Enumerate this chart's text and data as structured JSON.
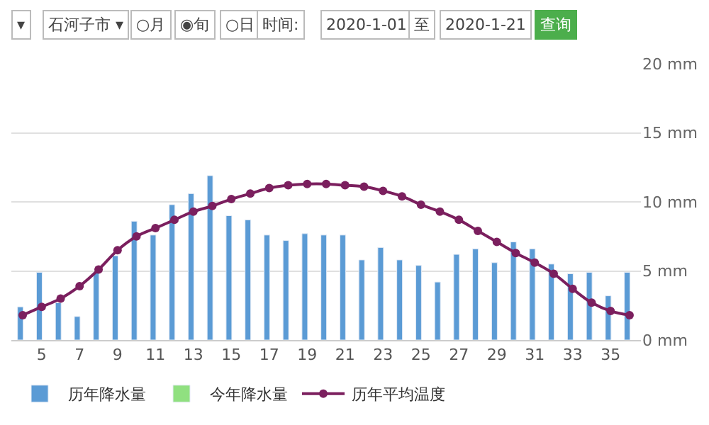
{
  "chart_data": {
    "type": "bar",
    "annotations": [
      "▾",
      "石河子市 ▾",
      "○月",
      "◉旬",
      "○日",
      "时间:",
      "2020-1-01",
      "至",
      "2020-1-21",
      "查询"
    ],
    "categories": [
      null,
      "5",
      null,
      "7",
      null,
      "9",
      null,
      "11",
      null,
      "13",
      null,
      "15",
      null,
      "17",
      null,
      "19",
      null,
      "21",
      null,
      "23",
      null,
      "25",
      null,
      "27",
      null,
      "29",
      null,
      "31",
      null,
      "33",
      null,
      "35",
      null
    ],
    "series": [
      {
        "name": "历年降水量",
        "color": "#5b9bd5",
        "values": [
          2.4,
          4.9,
          2.7,
          1.7,
          4.9,
          6.1,
          8.6,
          7.6,
          9.8,
          10.6,
          11.9,
          9.0,
          8.7,
          7.6,
          7.2,
          7.7,
          7.6,
          7.6,
          5.8,
          6.7,
          5.8,
          5.4,
          4.2,
          6.2,
          6.6,
          5.6,
          7.1,
          6.6,
          5.5,
          4.8,
          4.9,
          3.2,
          4.9
        ]
      },
      {
        "name": "今年降水量",
        "color": "#90e080",
        "values": [
          null,
          null,
          null,
          null,
          null,
          null,
          null,
          null,
          null,
          null,
          null,
          null,
          null,
          null,
          null,
          null,
          null,
          null,
          null,
          null,
          null,
          null,
          null,
          null,
          null,
          null,
          null,
          null,
          null,
          null,
          null,
          null,
          null
        ]
      },
      {
        "name": "历年平均温度",
        "type": "line",
        "color": "#7b1f5e",
        "marker": "circle",
        "values": [
          1.8,
          2.4,
          3.0,
          3.9,
          5.1,
          6.5,
          7.5,
          8.1,
          8.7,
          9.3,
          9.7,
          10.2,
          10.6,
          11.0,
          11.2,
          11.3,
          11.3,
          11.2,
          11.1,
          10.8,
          10.4,
          9.8,
          9.3,
          8.7,
          7.9,
          7.1,
          6.3,
          5.6,
          4.8,
          3.7,
          2.7,
          2.1,
          1.8
        ]
      }
    ],
    "ylim": [
      0,
      20
    ],
    "yticks": [
      {
        "value": 0,
        "label": "0 mm"
      },
      {
        "value": 5,
        "label": "5 mm"
      },
      {
        "value": 10,
        "label": "10 mm"
      },
      {
        "value": 15,
        "label": "15 mm"
      },
      {
        "value": 20,
        "label": "20 mm"
      }
    ],
    "grid": "y",
    "legend": "bottom"
  }
}
